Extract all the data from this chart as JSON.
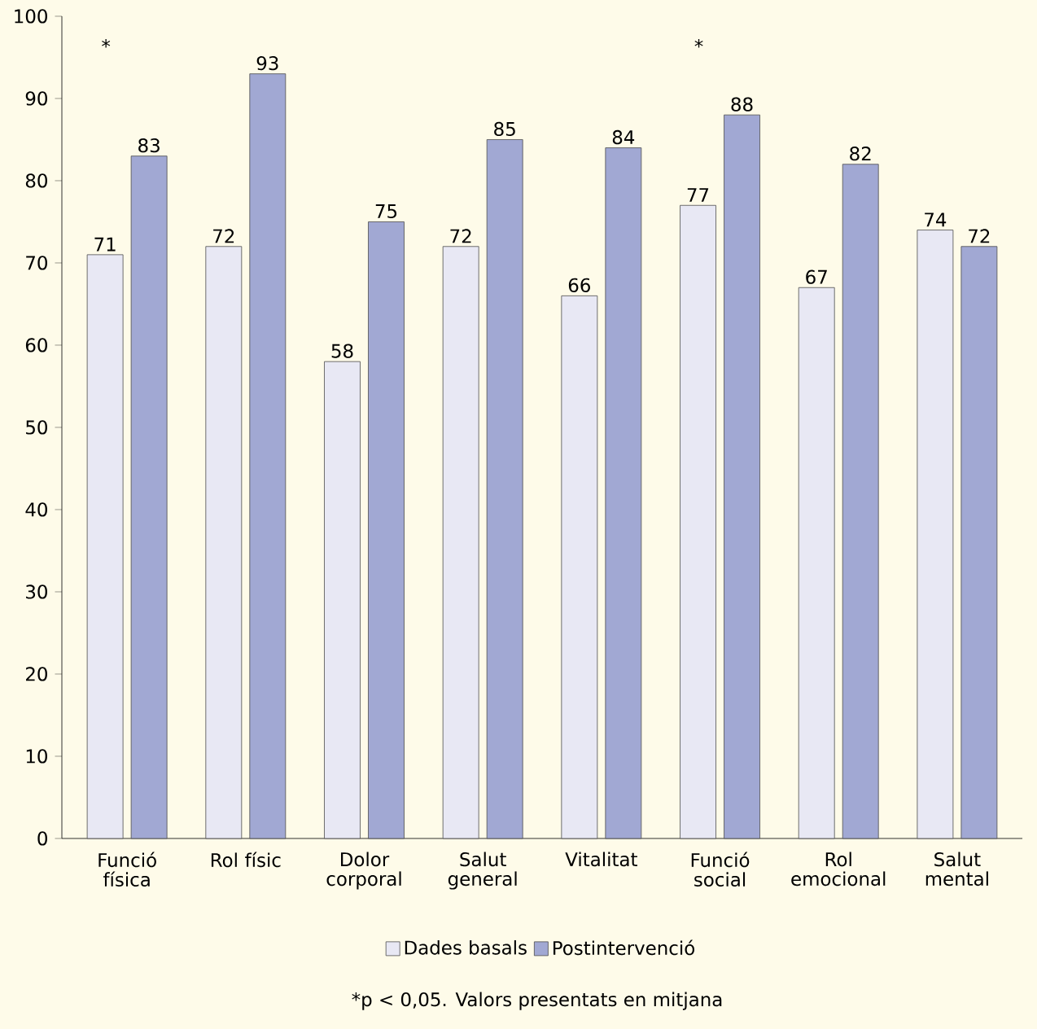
{
  "chart_data": {
    "type": "bar",
    "categories": [
      "Funció física",
      "Rol físic",
      "Dolor corporal",
      "Salut general",
      "Vitalitat",
      "Funció social",
      "Rol emocional",
      "Salut mental"
    ],
    "series": [
      {
        "name": "Dades basals",
        "color": "#e8e8f4",
        "values": [
          71,
          72,
          58,
          72,
          66,
          77,
          67,
          74
        ]
      },
      {
        "name": "Postintervenció",
        "color": "#a1a8d3",
        "values": [
          83,
          93,
          75,
          85,
          84,
          88,
          82,
          72
        ]
      }
    ],
    "ylim": [
      0,
      100
    ],
    "yticks": [
      0,
      10,
      20,
      30,
      40,
      50,
      60,
      70,
      80,
      90,
      100
    ],
    "data_labels": true,
    "legend": "bottom",
    "annotations": [
      "*",
      "*",
      "*p < 0,05. Valors presentats en mitjana"
    ]
  }
}
